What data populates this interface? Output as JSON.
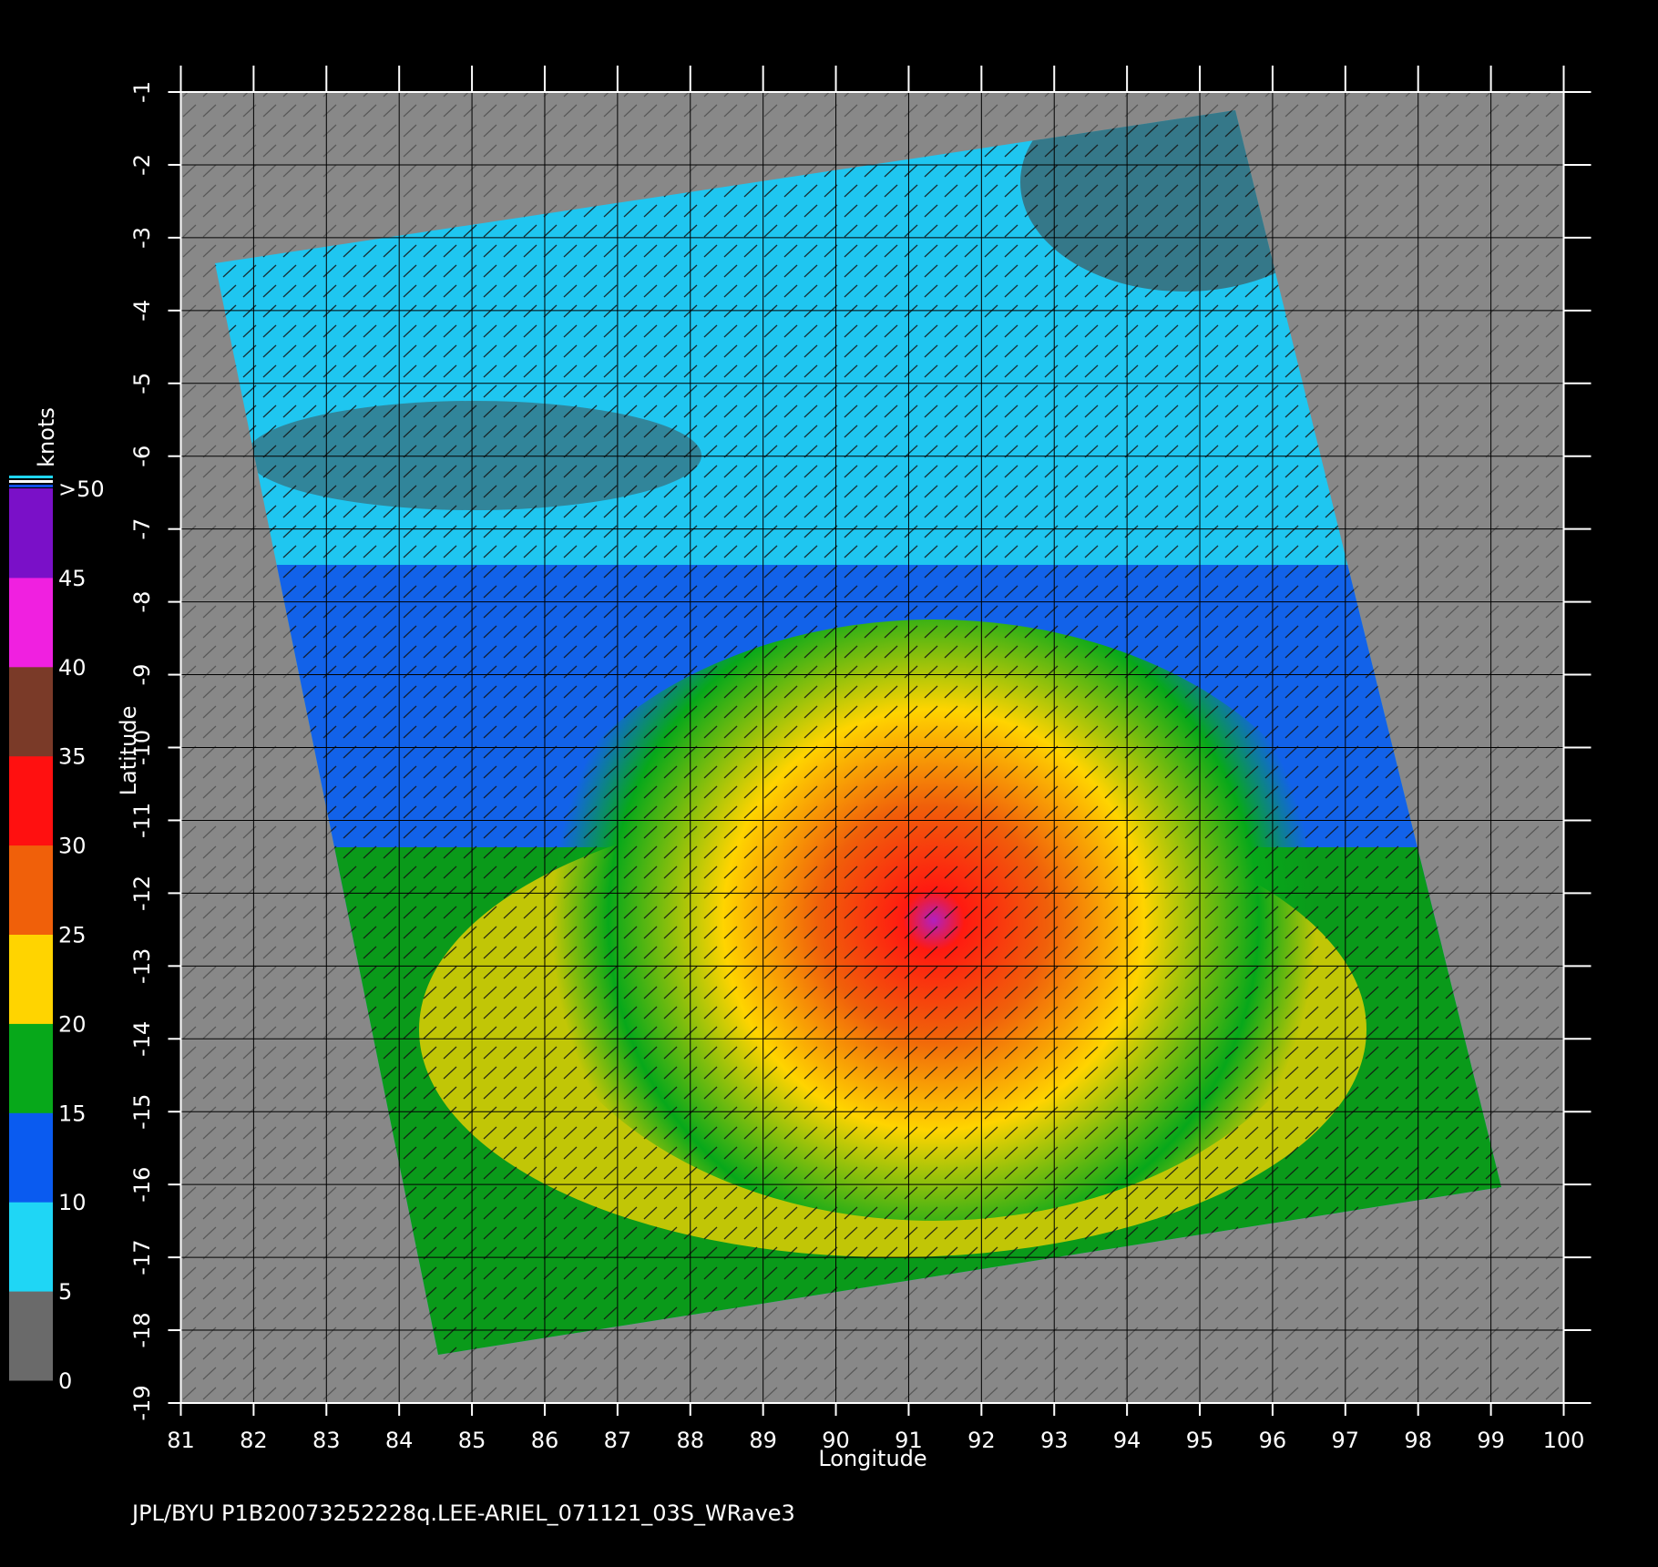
{
  "map": {
    "xlabel": "Longitude",
    "ylabel": "Latitude",
    "xlim": [
      81,
      100
    ],
    "xticks": [
      81,
      82,
      83,
      84,
      85,
      86,
      87,
      88,
      89,
      90,
      91,
      92,
      93,
      94,
      95,
      96,
      97,
      98,
      99,
      100
    ],
    "ylim": [
      -1,
      -19
    ],
    "yticks": [
      -1,
      -2,
      -3,
      -4,
      -5,
      -6,
      -7,
      -8,
      -9,
      -10,
      -11,
      -12,
      -13,
      -14,
      -15,
      -16,
      -17,
      -18,
      -19
    ],
    "grid": true
  },
  "colorbar": {
    "unit": "knots",
    "ticks": [
      0,
      5,
      10,
      15,
      20,
      25,
      30,
      35,
      40,
      45,
      {
        "value": 50,
        "label": ">50"
      }
    ],
    "colors": [
      "#6a6a6a",
      "#1fd6f5",
      "#0a5bf0",
      "#07a81a",
      "#ffd400",
      "#f0600a",
      "#ff1010",
      "#7a3a28",
      "#f020e0",
      "#7a10c8"
    ]
  },
  "footer": "JPL/BYU  P1B20073252228q.LEE-ARIEL_071121_03S_WRave3"
}
